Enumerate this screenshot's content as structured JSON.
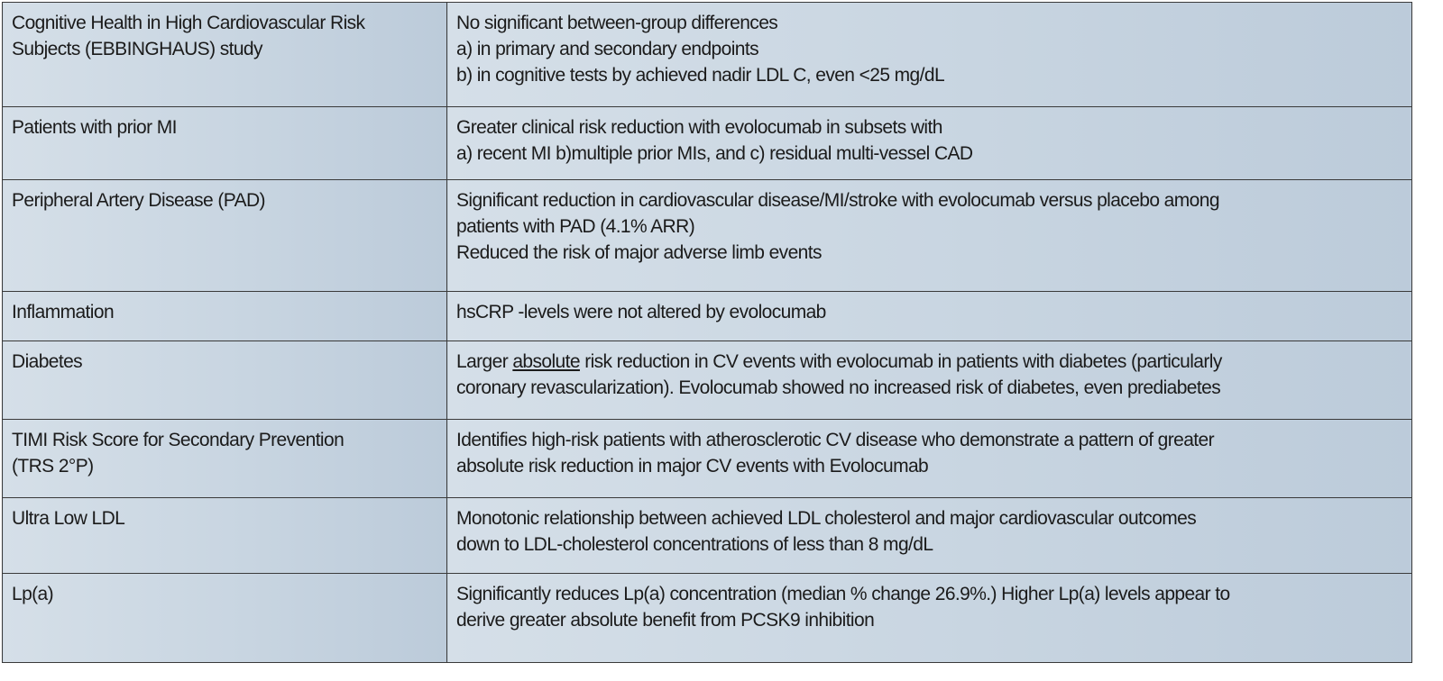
{
  "rows": [
    {
      "topic": [
        "Cognitive Health in High Cardiovascular Risk",
        "Subjects (EBBINGHAUS) study"
      ],
      "finding": [
        "No significant between-group differences",
        "a) in primary and secondary endpoints",
        "b) in cognitive tests by achieved nadir LDL C, even <25 mg/dL"
      ]
    },
    {
      "topic": [
        "Patients with prior MI"
      ],
      "finding": [
        "Greater clinical risk reduction with evolocumab in subsets with",
        "a) recent MI  b)multiple prior MIs, and c) residual multi-vessel CAD"
      ]
    },
    {
      "topic": [
        "Peripheral Artery Disease (PAD)"
      ],
      "finding": [
        "Significant reduction in cardiovascular disease/MI/stroke with evolocumab versus placebo among",
        "patients with PAD (4.1% ARR)",
        "Reduced the risk of major adverse limb events"
      ]
    },
    {
      "topic": [
        "Inflammation"
      ],
      "finding": [
        "hsCRP -levels were not altered by evolocumab"
      ]
    },
    {
      "topic": [
        "Diabetes"
      ],
      "finding_parts": {
        "pre": "Larger ",
        "underlined": "absolute",
        "post": " risk reduction in CV events with evolocumab in patients with diabetes (particularly"
      },
      "finding": [
        "coronary revascularization). Evolocumab showed no increased risk of diabetes, even  prediabetes"
      ]
    },
    {
      "topic": [
        "TIMI Risk Score for Secondary Prevention",
        "(TRS 2°P)"
      ],
      "finding": [
        "Identifies high-risk patients with atherosclerotic CV disease who demonstrate a pattern of greater",
        "absolute risk reduction in major CV events with Evolocumab"
      ]
    },
    {
      "topic": [
        "Ultra Low LDL"
      ],
      "finding": [
        "Monotonic relationship between achieved LDL cholesterol and major cardiovascular outcomes",
        "down to LDL-cholesterol concentrations of less than 8 mg/dL"
      ]
    },
    {
      "topic": [
        "Lp(a)"
      ],
      "finding": [
        "Significantly reduces Lp(a) concentration (median % change 26.9%.) Higher Lp(a) levels appear to",
        "derive greater absolute benefit from PCSK9 inhibition"
      ]
    }
  ]
}
